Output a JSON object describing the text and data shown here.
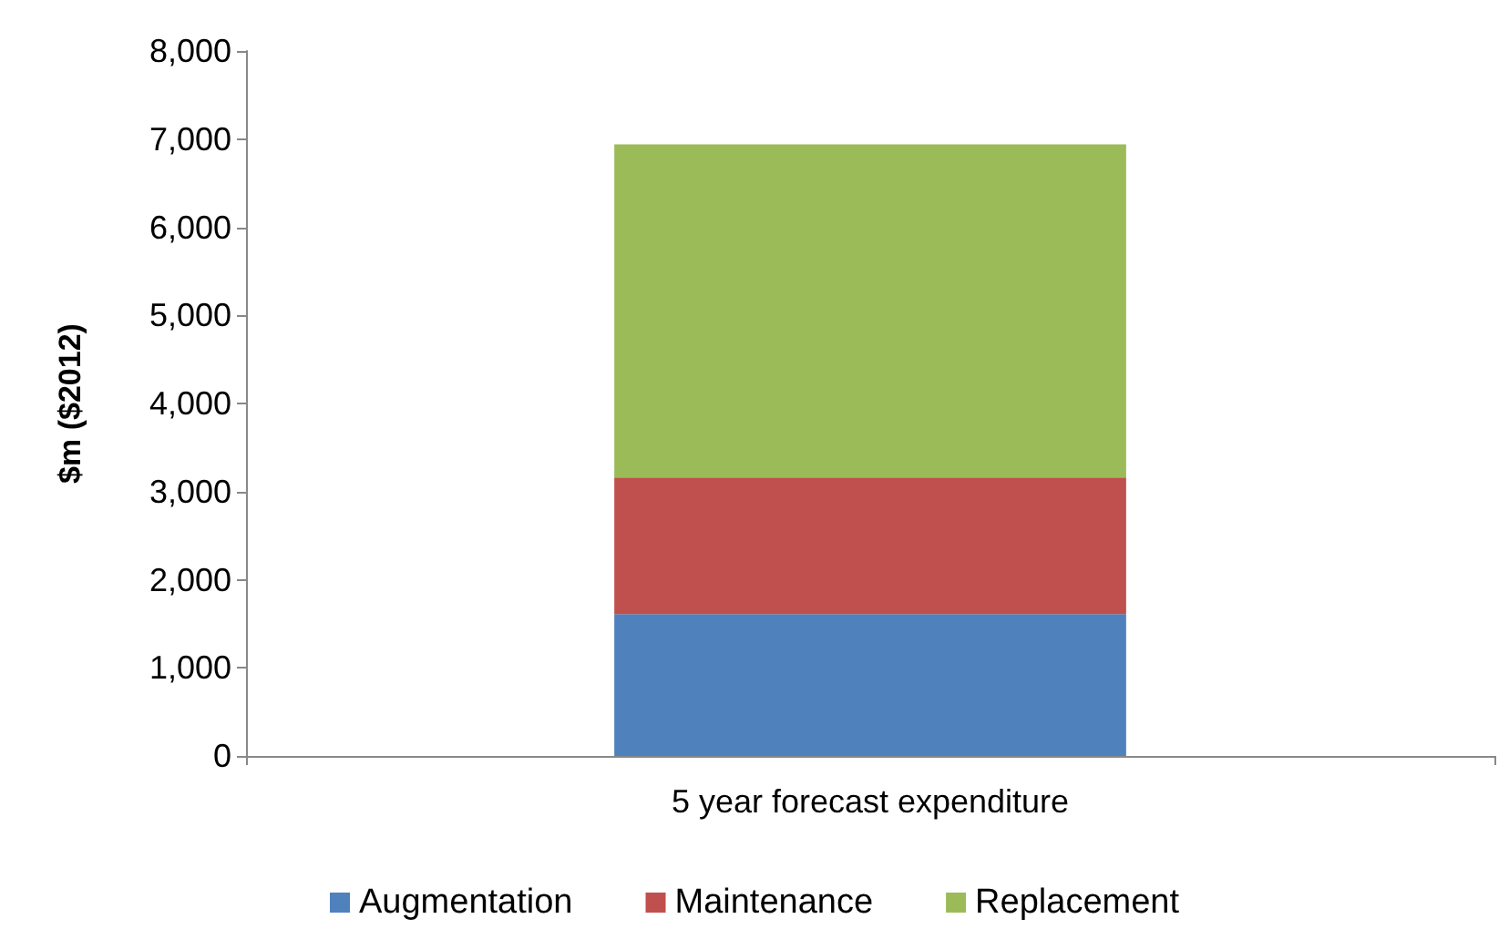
{
  "chart_data": {
    "type": "bar",
    "stacked": true,
    "ylabel": "$m ($2012)",
    "categories": [
      "5 year forecast expenditure"
    ],
    "series": [
      {
        "name": "Augmentation",
        "color": "#4f81bd",
        "values": [
          1610
        ]
      },
      {
        "name": "Maintenance",
        "color": "#c0504d",
        "values": [
          1550
        ]
      },
      {
        "name": "Replacement",
        "color": "#9bbb59",
        "values": [
          3780
        ]
      }
    ],
    "ylim": [
      0,
      8000
    ],
    "yticks": [
      0,
      {
        "value": 1000,
        "label": "1,000"
      },
      {
        "value": 2000,
        "label": "2,000"
      },
      {
        "value": 3000,
        "label": "3,000"
      },
      {
        "value": 4000,
        "label": "4,000"
      },
      {
        "value": 5000,
        "label": "5,000"
      },
      {
        "value": 6000,
        "label": "6,000"
      },
      {
        "value": 7000,
        "label": "7,000"
      },
      {
        "value": 8000,
        "label": "8,000"
      }
    ],
    "grid": false,
    "legend": "bottom"
  }
}
